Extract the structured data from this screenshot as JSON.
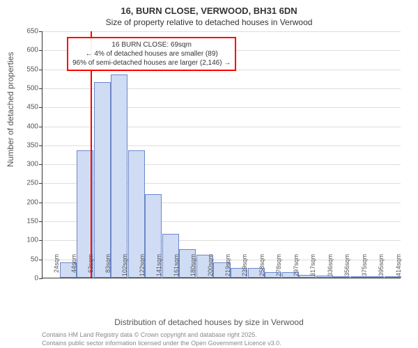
{
  "title_main": "16, BURN CLOSE, VERWOOD, BH31 6DN",
  "title_sub": "Size of property relative to detached houses in Verwood",
  "y_axis_label": "Number of detached properties",
  "x_axis_label": "Distribution of detached houses by size in Verwood",
  "footer1": "Contains HM Land Registry data © Crown copyright and database right 2025.",
  "footer2": "Contains public sector information licensed under the Open Government Licence v3.0.",
  "chart": {
    "type": "histogram",
    "ylim": [
      0,
      650
    ],
    "ytick_step": 50,
    "x_categories": [
      "24sqm",
      "44sqm",
      "63sqm",
      "83sqm",
      "102sqm",
      "122sqm",
      "141sqm",
      "161sqm",
      "180sqm",
      "200sqm",
      "219sqm",
      "239sqm",
      "258sqm",
      "278sqm",
      "297sqm",
      "317sqm",
      "336sqm",
      "356sqm",
      "375sqm",
      "395sqm",
      "414sqm"
    ],
    "values": [
      0,
      40,
      335,
      515,
      535,
      335,
      220,
      115,
      75,
      60,
      40,
      25,
      25,
      15,
      15,
      8,
      5,
      3,
      3,
      2,
      2
    ],
    "bar_fill": "#cfdcf3",
    "bar_stroke": "#6b86c9",
    "background": "#ffffff",
    "grid_color": "#dddddd",
    "ref_line_color": "#ff0000",
    "ref_line_position": 69,
    "annotation": {
      "line1": "16 BURN CLOSE: 69sqm",
      "line2": "← 4% of detached houses are smaller (89)",
      "line3": "96% of semi-detached houses are larger (2,146) →",
      "border_color": "#ff0000"
    }
  }
}
